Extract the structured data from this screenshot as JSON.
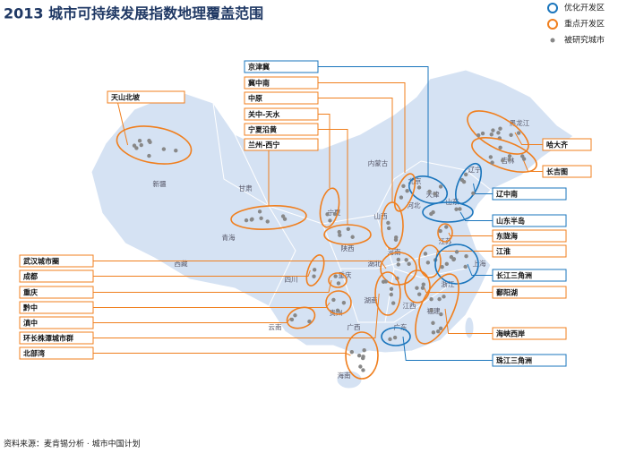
{
  "title": "2013 城市可持续发展指数地理覆盖范围",
  "legend": [
    {
      "label": "优化开发区",
      "color": "#1a75bc"
    },
    {
      "label": "重点开发区",
      "color": "#f07f1e"
    },
    {
      "label": "被研究城市",
      "color": "#888888"
    }
  ],
  "regions": [
    {
      "label": "天山北坡",
      "type": "key"
    },
    {
      "label": "京津冀",
      "type": "optimized"
    },
    {
      "label": "冀中南",
      "type": "key"
    },
    {
      "label": "中原",
      "type": "key"
    },
    {
      "label": "关中-天水",
      "type": "key"
    },
    {
      "label": "宁夏沿黄",
      "type": "key"
    },
    {
      "label": "兰州-西宁",
      "type": "key"
    },
    {
      "label": "武汉城市圈",
      "type": "key"
    },
    {
      "label": "成都",
      "type": "key"
    },
    {
      "label": "重庆",
      "type": "key"
    },
    {
      "label": "黔中",
      "type": "key"
    },
    {
      "label": "滇中",
      "type": "key"
    },
    {
      "label": "环长株潭城市群",
      "type": "key"
    },
    {
      "label": "北部湾",
      "type": "key"
    },
    {
      "label": "哈大齐",
      "type": "key"
    },
    {
      "label": "长吉图",
      "type": "key"
    },
    {
      "label": "辽中南",
      "type": "optimized"
    },
    {
      "label": "山东半岛",
      "type": "optimized"
    },
    {
      "label": "东陇海",
      "type": "key"
    },
    {
      "label": "江淮",
      "type": "key"
    },
    {
      "label": "长江三角洲",
      "type": "optimized"
    },
    {
      "label": "鄱阳湖",
      "type": "key"
    },
    {
      "label": "海峡西岸",
      "type": "key"
    },
    {
      "label": "珠江三角洲",
      "type": "optimized"
    }
  ],
  "provinces": [
    "新疆",
    "甘肃",
    "青海",
    "西藏",
    "四川",
    "云南",
    "贵州",
    "重庆",
    "陕西",
    "宁夏",
    "内蒙古",
    "山西",
    "河北",
    "北京",
    "天津",
    "河南",
    "湖北",
    "湖南",
    "江西",
    "广东",
    "广西",
    "海南",
    "福建",
    "浙江",
    "上海",
    "江苏",
    "山东",
    "辽宁",
    "吉林",
    "黑龙江"
  ],
  "source": "资料来源：麦肯锡分析 · 城市中国计划"
}
